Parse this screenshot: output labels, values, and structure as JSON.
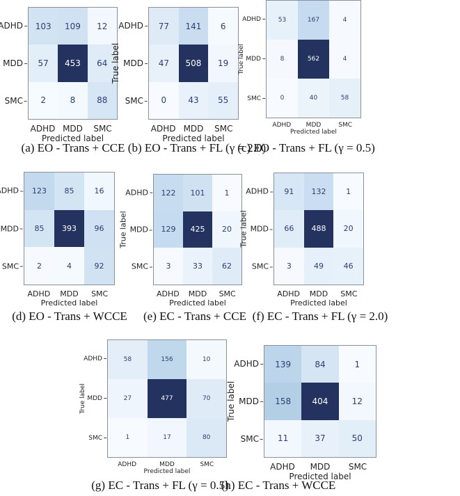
{
  "chart_data": [
    {
      "type": "heatmap",
      "id": "a",
      "caption": "(a) EO - Trans + CCE",
      "xlabel": "Predicted label",
      "ylabel": "True label",
      "x_categories": [
        "ADHD",
        "MDD",
        "SMC"
      ],
      "y_categories": [
        "ADHD",
        "MDD",
        "SMC"
      ],
      "values": [
        [
          103,
          109,
          12
        ],
        [
          57,
          453,
          64
        ],
        [
          2,
          8,
          88
        ]
      ]
    },
    {
      "type": "heatmap",
      "id": "b",
      "caption": "(b) EO - Trans + FL (γ = 2.0)",
      "xlabel": "Predicted label",
      "ylabel": "True label",
      "x_categories": [
        "ADHD",
        "MDD",
        "SMC"
      ],
      "y_categories": [
        "ADHD",
        "MDD",
        "SMC"
      ],
      "values": [
        [
          77,
          141,
          6
        ],
        [
          47,
          508,
          19
        ],
        [
          0,
          43,
          55
        ]
      ]
    },
    {
      "type": "heatmap",
      "id": "c",
      "caption": "(c) EO - Trans + FL (γ = 0.5)",
      "xlabel": "Predicted label",
      "ylabel": "True label",
      "x_categories": [
        "ADHD",
        "MDD",
        "SMC"
      ],
      "y_categories": [
        "ADHD",
        "MDD",
        "SMC"
      ],
      "values": [
        [
          53,
          167,
          4
        ],
        [
          8,
          562,
          4
        ],
        [
          0,
          40,
          58
        ]
      ]
    },
    {
      "type": "heatmap",
      "id": "d",
      "caption": "(d) EO - Trans + WCCE",
      "xlabel": "Predicted label",
      "ylabel": "True label",
      "x_categories": [
        "ADHD",
        "MDD",
        "SMC"
      ],
      "y_categories": [
        "ADHD",
        "MDD",
        "SMC"
      ],
      "values": [
        [
          123,
          85,
          16
        ],
        [
          85,
          393,
          96
        ],
        [
          2,
          4,
          92
        ]
      ]
    },
    {
      "type": "heatmap",
      "id": "e",
      "caption": "(e) EC - Trans + CCE",
      "xlabel": "Predicted label",
      "ylabel": "True label",
      "x_categories": [
        "ADHD",
        "MDD",
        "SMC"
      ],
      "y_categories": [
        "ADHD",
        "MDD",
        "SMC"
      ],
      "values": [
        [
          122,
          101,
          1
        ],
        [
          129,
          425,
          20
        ],
        [
          3,
          33,
          62
        ]
      ]
    },
    {
      "type": "heatmap",
      "id": "f",
      "caption": "(f) EC - Trans + FL (γ = 2.0)",
      "xlabel": "Predicted label",
      "ylabel": "True label",
      "x_categories": [
        "ADHD",
        "MDD",
        "SMC"
      ],
      "y_categories": [
        "ADHD",
        "MDD",
        "SMC"
      ],
      "values": [
        [
          91,
          132,
          1
        ],
        [
          66,
          488,
          20
        ],
        [
          3,
          49,
          46
        ]
      ]
    },
    {
      "type": "heatmap",
      "id": "g",
      "caption": "(g) EC - Trans + FL (γ = 0.5)",
      "xlabel": "Predicted label",
      "ylabel": "True label",
      "x_categories": [
        "ADHD",
        "MDD",
        "SMC"
      ],
      "y_categories": [
        "ADHD",
        "MDD",
        "SMC"
      ],
      "values": [
        [
          58,
          156,
          10
        ],
        [
          27,
          477,
          70
        ],
        [
          1,
          17,
          80
        ]
      ]
    },
    {
      "type": "heatmap",
      "id": "h",
      "caption": "(h) EC - Trans + WCCE",
      "xlabel": "Predicted label",
      "ylabel": "True label",
      "x_categories": [
        "ADHD",
        "MDD",
        "SMC"
      ],
      "y_categories": [
        "ADHD",
        "MDD",
        "SMC"
      ],
      "values": [
        [
          139,
          84,
          1
        ],
        [
          158,
          404,
          12
        ],
        [
          11,
          37,
          50
        ]
      ]
    }
  ],
  "colors": {
    "low": "#f7fbff",
    "high": "#23325f",
    "text_dark": "#2b3f72",
    "text_light": "#ffffff"
  }
}
